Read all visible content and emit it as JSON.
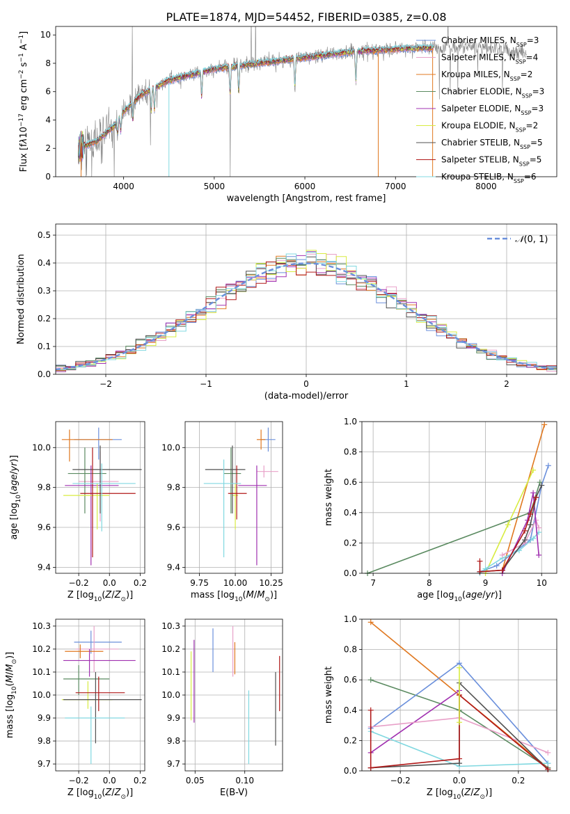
{
  "title": "PLATE=1874, MJD=54452, FIBERID=0385, z=0.08",
  "colors": {
    "chabrier_miles": "#6a8fdb",
    "salpeter_miles": "#e8a0c8",
    "kroupa_miles": "#e07820",
    "chabrier_elodie": "#5a8a60",
    "salpeter_elodie": "#a030b0",
    "kroupa_elodie": "#d8ec40",
    "chabrier_stelib": "#505050",
    "salpeter_stelib": "#b01818",
    "kroupa_stelib": "#80d8e0",
    "data": "#808080"
  },
  "chart_data": [
    {
      "id": "spectrum",
      "type": "line",
      "xlabel": "wavelength [Angstrom, rest frame]",
      "ylabel": "Flux [fλ10⁻¹⁷ erg cm⁻² s⁻¹ A⁻¹]",
      "xlim": [
        3250,
        8780
      ],
      "ylim": [
        0,
        10.6
      ],
      "xticks": [
        4000,
        5000,
        6000,
        7000,
        8000
      ],
      "yticks": [
        0,
        2,
        4,
        6,
        8,
        10
      ],
      "grid": false,
      "legend_position": "right",
      "legend": [
        {
          "label": "Chabrier MILES, NSSP=3",
          "color": "#6a8fdb"
        },
        {
          "label": "Salpeter MILES, NSSP=4",
          "color": "#e8a0c8"
        },
        {
          "label": "Kroupa MILES, NSSP=2",
          "color": "#e07820"
        },
        {
          "label": "Chabrier ELODIE, NSSP=3",
          "color": "#5a8a60"
        },
        {
          "label": "Salpeter ELODIE, NSSP=3",
          "color": "#a030b0"
        },
        {
          "label": "Kroupa ELODIE, NSSP=2",
          "color": "#d8ec40"
        },
        {
          "label": "Chabrier STELIB, NSSP=5",
          "color": "#505050"
        },
        {
          "label": "Salpeter STELIB, NSSP=5",
          "color": "#b01818"
        },
        {
          "label": "Kroupa STELIB, NSSP=6",
          "color": "#80d8e0"
        }
      ],
      "continuum": {
        "x": [
          3500,
          3700,
          3900,
          4000,
          4200,
          4500,
          5000,
          5500,
          6000,
          6500,
          7000,
          7400,
          7800,
          8200,
          8450
        ],
        "y": [
          2.0,
          2.5,
          3.6,
          4.6,
          5.8,
          6.8,
          7.6,
          8.0,
          8.4,
          8.8,
          9.0,
          9.1,
          9.2,
          9.0,
          8.6
        ]
      },
      "data_range": [
        3500,
        8450
      ],
      "model_range": [
        3500,
        7420
      ]
    },
    {
      "id": "residuals",
      "type": "histogram",
      "xlabel": "(data-model)/error",
      "ylabel": "Normed distribution",
      "xlim": [
        -2.5,
        2.5
      ],
      "ylim": [
        0,
        0.54
      ],
      "xticks": [
        -2,
        -1,
        0,
        1,
        2
      ],
      "yticks": [
        0.0,
        0.1,
        0.2,
        0.3,
        0.4,
        0.5
      ],
      "grid": true,
      "legend_position": "top-right",
      "reference": {
        "label": "N(0, 1)",
        "color": "#6a8fdb",
        "dash": true
      },
      "bin_width": 0.1
    },
    {
      "id": "z_vs_age",
      "type": "errorbar",
      "xlabel": "Z [log10(Z/Z☉)]",
      "ylabel": "age [log10(age/yr)]",
      "xlim": [
        -0.35,
        0.23
      ],
      "ylim": [
        9.37,
        10.13
      ],
      "xticks": [
        -0.2,
        0.0,
        0.2
      ],
      "yticks": [
        9.4,
        9.6,
        9.8,
        10.0
      ],
      "grid": true,
      "points": [
        {
          "c": "#6a8fdb",
          "x": -0.07,
          "xe": [
            0.16,
            0.15
          ],
          "y": 10.04,
          "ye": [
            0.1,
            0.06
          ]
        },
        {
          "c": "#e8a0c8",
          "x": -0.06,
          "xe": [
            0.14,
            0.12
          ],
          "y": 9.83,
          "ye": [
            0.2,
            0.15
          ]
        },
        {
          "c": "#e07820",
          "x": -0.26,
          "xe": [
            0.05,
            0.28
          ],
          "y": 10.04,
          "ye": [
            0.11,
            0.05
          ]
        },
        {
          "c": "#5a8a60",
          "x": -0.16,
          "xe": [
            0.11,
            0.14
          ],
          "y": 9.87,
          "ye": [
            0.2,
            0.13
          ]
        },
        {
          "c": "#a030b0",
          "x": -0.12,
          "xe": [
            0.17,
            0.18
          ],
          "y": 9.81,
          "ye": [
            0.4,
            0.1
          ]
        },
        {
          "c": "#d8ec40",
          "x": -0.08,
          "xe": [
            0.22,
            0.08
          ],
          "y": 9.76,
          "ye": [
            0.17,
            0.06
          ]
        },
        {
          "c": "#505050",
          "x": -0.06,
          "xe": [
            0.18,
            0.27
          ],
          "y": 9.89,
          "ye": [
            0.22,
            0.12
          ]
        },
        {
          "c": "#b01818",
          "x": -0.11,
          "xe": [
            0.08,
            0.28
          ],
          "y": 9.77,
          "ye": [
            0.32,
            0.23
          ]
        },
        {
          "c": "#80d8e0",
          "x": -0.05,
          "xe": [
            0.19,
            0.22
          ],
          "y": 9.82,
          "ye": [
            0.24,
            0.1
          ]
        }
      ]
    },
    {
      "id": "mass_vs_age",
      "type": "errorbar",
      "xlabel": "mass [log10(M/M☉)]",
      "ylabel": "",
      "xlim": [
        9.65,
        10.33
      ],
      "ylim": [
        9.37,
        10.13
      ],
      "xticks": [
        9.75,
        10.0,
        10.25
      ],
      "yticks": [
        9.4,
        9.6,
        9.8,
        10.0
      ],
      "grid": true,
      "points": [
        {
          "c": "#6a8fdb",
          "x": 10.23,
          "xe": [
            0.05,
            0.05
          ],
          "y": 10.04,
          "ye": [
            0.06,
            0.06
          ]
        },
        {
          "c": "#e8a0c8",
          "x": 10.2,
          "xe": [
            0.05,
            0.1
          ],
          "y": 9.88,
          "ye": [
            0.03,
            0.03
          ]
        },
        {
          "c": "#e07820",
          "x": 10.18,
          "xe": [
            0.03,
            0.03
          ],
          "y": 10.04,
          "ye": [
            0.05,
            0.05
          ]
        },
        {
          "c": "#5a8a60",
          "x": 9.97,
          "xe": [
            0.05,
            0.07
          ],
          "y": 9.87,
          "ye": [
            0.2,
            0.13
          ]
        },
        {
          "c": "#a030b0",
          "x": 10.15,
          "xe": [
            0.13,
            0.07
          ],
          "y": 9.81,
          "ye": [
            0.4,
            0.1
          ]
        },
        {
          "c": "#d8ec40",
          "x": 10.0,
          "xe": [
            0.02,
            0.02
          ],
          "y": 9.76,
          "ye": [
            0.17,
            0.06
          ]
        },
        {
          "c": "#505050",
          "x": 9.98,
          "xe": [
            0.19,
            0.09
          ],
          "y": 9.89,
          "ye": [
            0.22,
            0.12
          ]
        },
        {
          "c": "#b01818",
          "x": 10.01,
          "xe": [
            0.06,
            0.07
          ],
          "y": 9.77,
          "ye": [
            0.13,
            0.14
          ]
        },
        {
          "c": "#80d8e0",
          "x": 9.92,
          "xe": [
            0.14,
            0.12
          ],
          "y": 9.82,
          "ye": [
            0.37,
            0.12
          ]
        }
      ]
    },
    {
      "id": "age_vs_weight",
      "type": "line",
      "xlabel": "age [log10(age/yr)]",
      "ylabel": "mass weight",
      "xlim": [
        6.8,
        10.27
      ],
      "ylim": [
        0,
        1
      ],
      "xticks": [
        7,
        8,
        9,
        10
      ],
      "yticks": [
        0.0,
        0.2,
        0.4,
        0.6,
        0.8,
        1.0
      ],
      "grid": true,
      "series": [
        {
          "c": "#e07820",
          "x": [
            9.3,
            10.05
          ],
          "y": [
            0.02,
            0.98
          ]
        },
        {
          "c": "#5a8a60",
          "x": [
            6.9,
            9.8,
            9.97
          ],
          "y": [
            0.0,
            0.4,
            0.6
          ]
        },
        {
          "c": "#d8ec40",
          "x": [
            9.0,
            9.4,
            9.85
          ],
          "y": [
            0.0,
            0.32,
            0.68
          ]
        },
        {
          "c": "#6a8fdb",
          "x": [
            8.9,
            9.2,
            9.8,
            10.0,
            10.12
          ],
          "y": [
            0.01,
            0.05,
            0.22,
            0.58,
            0.71
          ]
        },
        {
          "c": "#80d8e0",
          "x": [
            8.9,
            9.0,
            9.3,
            9.6,
            9.85,
            9.95
          ],
          "y": [
            0.0,
            0.03,
            0.1,
            0.15,
            0.23,
            0.27
          ]
        },
        {
          "c": "#e8a0c8",
          "x": [
            9.3,
            9.7,
            9.9,
            9.95
          ],
          "y": [
            0.12,
            0.2,
            0.35,
            0.3
          ]
        },
        {
          "c": "#a030b0",
          "x": [
            9.3,
            9.75,
            9.85,
            9.95
          ],
          "y": [
            0.0,
            0.35,
            0.53,
            0.12
          ]
        },
        {
          "c": "#505050",
          "x": [
            8.9,
            9.3,
            9.7,
            9.8,
            9.9,
            10.0
          ],
          "y": [
            0.01,
            0.02,
            0.22,
            0.32,
            0.5,
            0.58
          ]
        },
        {
          "c": "#b01818",
          "x": [
            8.9,
            8.9,
            9.3,
            9.7,
            9.8,
            9.9
          ],
          "y": [
            0.08,
            0.01,
            0.02,
            0.28,
            0.39,
            0.5
          ]
        }
      ]
    },
    {
      "id": "z_vs_mass",
      "type": "errorbar",
      "xlabel": "Z [log10(Z/Z☉)]",
      "ylabel": "mass [log10(M/M☉)]",
      "xlim": [
        -0.35,
        0.23
      ],
      "ylim": [
        9.67,
        10.33
      ],
      "xticks": [
        -0.2,
        0.0,
        0.2
      ],
      "yticks": [
        9.7,
        9.8,
        9.9,
        10.0,
        10.1,
        10.2,
        10.3
      ],
      "grid": true,
      "points": [
        {
          "c": "#6a8fdb",
          "x": -0.12,
          "xe": [
            0.11,
            0.2
          ],
          "y": 10.23,
          "ye": [
            0.05,
            0.05
          ]
        },
        {
          "c": "#e8a0c8",
          "x": -0.1,
          "xe": [
            0.12,
            0.16
          ],
          "y": 10.2,
          "ye": [
            0.1,
            0.1
          ]
        },
        {
          "c": "#e07820",
          "x": -0.19,
          "xe": [
            0.1,
            0.15
          ],
          "y": 10.19,
          "ye": [
            0.03,
            0.03
          ]
        },
        {
          "c": "#5a8a60",
          "x": -0.2,
          "xe": [
            0.1,
            0.2
          ],
          "y": 10.07,
          "ye": [
            0.07,
            0.06
          ]
        },
        {
          "c": "#a030b0",
          "x": -0.13,
          "xe": [
            0.17,
            0.3
          ],
          "y": 10.15,
          "ye": [
            0.07,
            0.05
          ]
        },
        {
          "c": "#d8ec40",
          "x": -0.14,
          "xe": [
            0.17,
            0.16
          ],
          "y": 9.98,
          "ye": [
            0.04,
            0.08
          ]
        },
        {
          "c": "#505050",
          "x": -0.09,
          "xe": [
            0.21,
            0.3
          ],
          "y": 9.98,
          "ye": [
            0.19,
            0.12
          ]
        },
        {
          "c": "#b01818",
          "x": -0.07,
          "xe": [
            0.15,
            0.17
          ],
          "y": 10.01,
          "ye": [
            0.08,
            0.07
          ]
        },
        {
          "c": "#80d8e0",
          "x": -0.12,
          "xe": [
            0.17,
            0.22
          ],
          "y": 9.9,
          "ye": [
            0.2,
            0.05
          ]
        }
      ]
    },
    {
      "id": "ebv_vs_mass",
      "type": "errorbar",
      "xlabel": "E(B-V)",
      "ylabel": "",
      "xlim": [
        0.04,
        0.138
      ],
      "ylim": [
        9.67,
        10.33
      ],
      "xticks": [
        0.05,
        0.1
      ],
      "xticklabels": [
        "0.05",
        "0.10"
      ],
      "yticks": [
        9.7,
        9.8,
        9.9,
        10.0,
        10.1,
        10.2,
        10.3
      ],
      "grid": true,
      "points": [
        {
          "c": "#6a8fdb",
          "x": 0.068,
          "xe": [
            0,
            0
          ],
          "y": 10.195,
          "ye": [
            0.095,
            0.095
          ]
        },
        {
          "c": "#e8a0c8",
          "x": 0.088,
          "xe": [
            0,
            0
          ],
          "y": 10.19,
          "ye": [
            0.11,
            0.11
          ]
        },
        {
          "c": "#e07820",
          "x": 0.09,
          "xe": [
            0,
            0
          ],
          "y": 10.16,
          "ye": [
            0.07,
            0.07
          ]
        },
        {
          "c": "#a030b0",
          "x": 0.049,
          "xe": [
            0,
            0
          ],
          "y": 10.06,
          "ye": [
            0.18,
            0.18
          ]
        },
        {
          "c": "#d8ec40",
          "x": 0.046,
          "xe": [
            0,
            0
          ],
          "y": 10.04,
          "ye": [
            0.15,
            0.15
          ]
        },
        {
          "c": "#505050",
          "x": 0.131,
          "xe": [
            0,
            0
          ],
          "y": 9.94,
          "ye": [
            0.16,
            0.16
          ]
        },
        {
          "c": "#b01818",
          "x": 0.135,
          "xe": [
            0,
            0
          ],
          "y": 10.05,
          "ye": [
            0.12,
            0.12
          ]
        },
        {
          "c": "#80d8e0",
          "x": 0.104,
          "xe": [
            0,
            0
          ],
          "y": 9.86,
          "ye": [
            0.16,
            0.16
          ]
        }
      ]
    },
    {
      "id": "z_vs_weight",
      "type": "line",
      "xlabel": "Z [log10(Z/Z☉)]",
      "ylabel": "mass weight",
      "xlim": [
        -0.33,
        0.33
      ],
      "ylim": [
        0,
        1
      ],
      "xticks": [
        -0.2,
        0.0,
        0.2
      ],
      "yticks": [
        0.0,
        0.2,
        0.4,
        0.6,
        0.8,
        1.0
      ],
      "grid": true,
      "series": [
        {
          "c": "#e07820",
          "x": [
            -0.3,
            0.0,
            0.3
          ],
          "y": [
            0.98,
            0.5,
            0.02
          ]
        },
        {
          "c": "#5a8a60",
          "x": [
            -0.3,
            0.0,
            0.3
          ],
          "y": [
            0.6,
            0.4,
            0.02
          ]
        },
        {
          "c": "#6a8fdb",
          "x": [
            -0.3,
            0.0,
            0.3
          ],
          "y": [
            0.28,
            0.71,
            0.05
          ]
        },
        {
          "c": "#a030b0",
          "x": [
            -0.3,
            0.0,
            0.0
          ],
          "y": [
            0.12,
            0.53,
            0.35
          ]
        },
        {
          "c": "#e8a0c8",
          "x": [
            -0.3,
            0.0,
            0.3
          ],
          "y": [
            0.29,
            0.35,
            0.12
          ]
        },
        {
          "c": "#80d8e0",
          "x": [
            -0.3,
            0.0,
            0.3
          ],
          "y": [
            0.26,
            0.03,
            0.05
          ]
        },
        {
          "c": "#505050",
          "x": [
            -0.3,
            0.0,
            0.0,
            0.3
          ],
          "y": [
            0.02,
            0.05,
            0.58,
            0.01
          ]
        },
        {
          "c": "#b01818",
          "x": [
            -0.3,
            -0.3,
            0.0,
            0.0,
            0.3
          ],
          "y": [
            0.4,
            0.02,
            0.08,
            0.5,
            0.01
          ]
        },
        {
          "c": "#d8ec40",
          "x": [
            0.0,
            0.0
          ],
          "y": [
            0.32,
            0.68
          ]
        }
      ]
    }
  ]
}
